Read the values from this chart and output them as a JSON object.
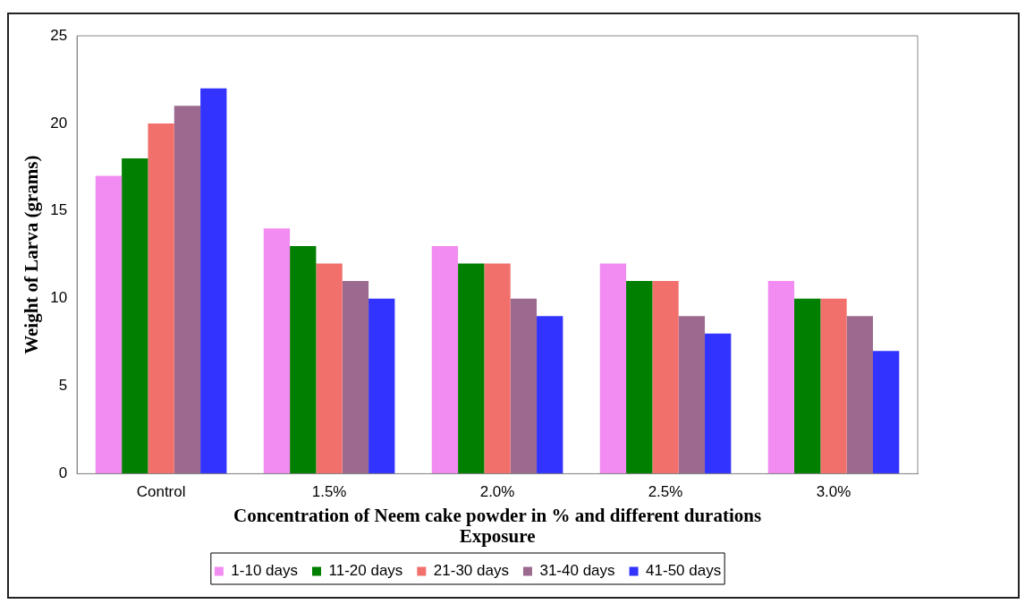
{
  "chart_data": {
    "type": "bar",
    "xlabel": "Concentration of Neem cake powder in % and different durations Exposure",
    "ylabel": "Weight of Larva (grams)",
    "categories": [
      "Control",
      "1.5%",
      "2.0%",
      "2.5%",
      "3.0%"
    ],
    "series": [
      {
        "name": "1-10 days",
        "color": "#f28cf2",
        "values": [
          17,
          14,
          13,
          12,
          11
        ]
      },
      {
        "name": "11-20 days",
        "color": "#007f00",
        "values": [
          18,
          13,
          12,
          11,
          10
        ]
      },
      {
        "name": "21-30 days",
        "color": "#f2706c",
        "values": [
          20,
          12,
          12,
          11,
          10
        ]
      },
      {
        "name": "31-40 days",
        "color": "#9c6a8e",
        "values": [
          21,
          11,
          10,
          9,
          9
        ]
      },
      {
        "name": "41-50 days",
        "color": "#3333ff",
        "values": [
          22,
          10,
          9,
          8,
          7
        ]
      }
    ],
    "ylim": [
      0,
      25
    ],
    "yticks": [
      0,
      5,
      10,
      15,
      20,
      25
    ],
    "grid": false,
    "legend": "bottom"
  }
}
